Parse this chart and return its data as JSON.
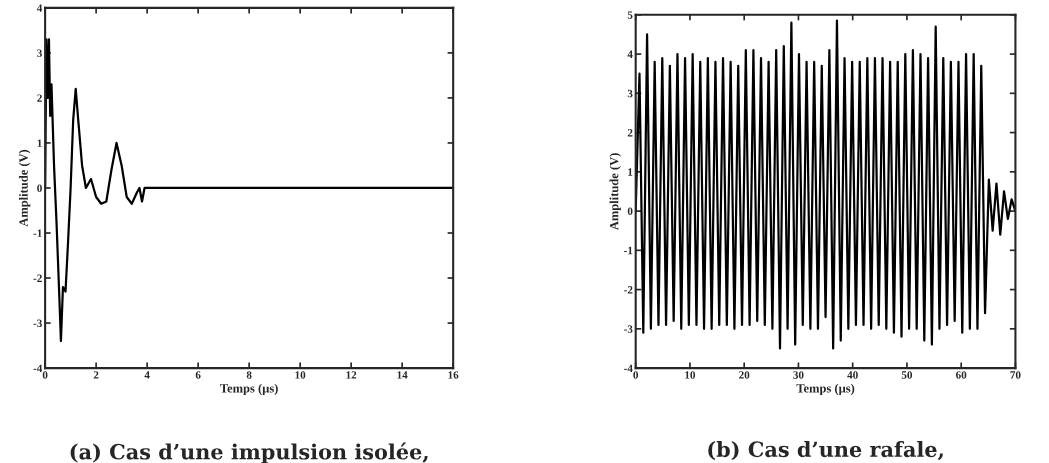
{
  "chart_data": [
    {
      "type": "line",
      "title": "(a) Cas d’une impulsion isolée,",
      "xlabel": "Temps (µs)",
      "ylabel": "Amplitude (V)",
      "xlim": [
        0,
        16
      ],
      "ylim": [
        -4,
        4
      ],
      "xticks": [
        0,
        2,
        4,
        6,
        8,
        10,
        12,
        14,
        16
      ],
      "yticks": [
        -4,
        -3,
        -2,
        -1,
        0,
        1,
        2,
        3,
        4
      ],
      "grid": false,
      "legend": false,
      "series": [
        {
          "color": "#000000",
          "x": [
            0,
            0.05,
            0.1,
            0.15,
            0.2,
            0.25,
            0.35,
            0.45,
            0.55,
            0.62,
            0.7,
            0.8,
            0.9,
            1.0,
            1.1,
            1.2,
            1.3,
            1.45,
            1.6,
            1.8,
            2.0,
            2.2,
            2.4,
            2.6,
            2.8,
            3.0,
            3.2,
            3.4,
            3.6,
            3.7,
            3.8,
            3.9,
            4.0,
            16
          ],
          "values": [
            0,
            3.3,
            2.0,
            3.3,
            1.6,
            2.3,
            0.5,
            -0.8,
            -2.3,
            -3.4,
            -2.2,
            -2.3,
            -1.2,
            0,
            1.5,
            2.2,
            1.5,
            0.5,
            0,
            0.2,
            -0.2,
            -0.35,
            -0.3,
            0.4,
            1.0,
            0.5,
            -0.2,
            -0.35,
            -0.1,
            0,
            -0.3,
            0,
            0,
            0
          ]
        }
      ]
    },
    {
      "type": "line",
      "title": "(b) Cas d’une rafale,",
      "xlabel": "Temps (µs)",
      "ylabel": "Amplitude (V)",
      "xlim": [
        0,
        70
      ],
      "ylim": [
        -4,
        5
      ],
      "xticks": [
        0,
        10,
        20,
        30,
        40,
        50,
        60,
        70
      ],
      "yticks": [
        -4,
        -3,
        -2,
        -1,
        0,
        1,
        2,
        3,
        4,
        5
      ],
      "grid": false,
      "legend": false,
      "series": [
        {
          "color": "#000000",
          "x": [
            0,
            0.7,
            1.4,
            2.1,
            2.8,
            3.5,
            4.2,
            4.9,
            5.6,
            6.3,
            7.0,
            7.7,
            8.4,
            9.1,
            9.8,
            10.5,
            11.2,
            11.9,
            12.6,
            13.3,
            14.0,
            14.7,
            15.4,
            16.1,
            16.8,
            17.5,
            18.2,
            18.9,
            19.6,
            20.3,
            21.0,
            21.7,
            22.4,
            23.1,
            23.8,
            24.5,
            25.2,
            25.9,
            26.6,
            27.3,
            28.0,
            28.7,
            29.4,
            30.1,
            30.8,
            31.5,
            32.2,
            32.9,
            33.6,
            34.3,
            35.0,
            35.7,
            36.4,
            37.1,
            37.8,
            38.5,
            39.2,
            39.9,
            40.6,
            41.3,
            42.0,
            42.7,
            43.4,
            44.1,
            44.8,
            45.5,
            46.2,
            46.9,
            47.6,
            48.3,
            49.0,
            49.7,
            50.4,
            51.1,
            51.8,
            52.5,
            53.2,
            53.9,
            54.6,
            55.3,
            56.0,
            56.7,
            57.4,
            58.1,
            58.8,
            59.5,
            60.2,
            60.9,
            61.6,
            62.3,
            63.0,
            63.7,
            64.4,
            65.1,
            65.8,
            66.5,
            67.2,
            67.9,
            68.6,
            69.3,
            70
          ],
          "values": [
            0,
            3.5,
            -3.1,
            4.5,
            -3.0,
            3.8,
            -2.9,
            3.9,
            -2.9,
            3.7,
            -2.8,
            4.0,
            -3.0,
            3.9,
            -2.9,
            4.0,
            -2.9,
            3.8,
            -3.0,
            3.9,
            -3.0,
            3.8,
            -2.9,
            3.9,
            -2.9,
            3.8,
            -3.0,
            3.7,
            -2.9,
            4.1,
            -2.9,
            4.1,
            -2.8,
            3.9,
            -2.9,
            3.8,
            -3.0,
            4.1,
            -3.5,
            4.2,
            -3.0,
            4.8,
            -3.4,
            4.0,
            -2.9,
            3.8,
            -3.0,
            3.8,
            -3.0,
            3.7,
            -2.7,
            4.1,
            -3.5,
            4.85,
            -3.3,
            3.9,
            -3.0,
            3.8,
            -2.9,
            3.8,
            -2.9,
            3.9,
            -3.0,
            3.9,
            -2.9,
            3.9,
            -3.0,
            3.8,
            -3.1,
            3.8,
            -3.2,
            4.0,
            -3.0,
            4.1,
            -3.0,
            4.0,
            -3.3,
            3.9,
            -3.4,
            4.7,
            -3.0,
            3.9,
            -2.9,
            3.8,
            -2.8,
            3.8,
            -3.1,
            4.0,
            -3.0,
            4.0,
            -3.0,
            3.7,
            -2.6,
            0.8,
            -0.5,
            0.7,
            -0.6,
            0.5,
            -0.2,
            0.3,
            0
          ]
        }
      ]
    }
  ]
}
